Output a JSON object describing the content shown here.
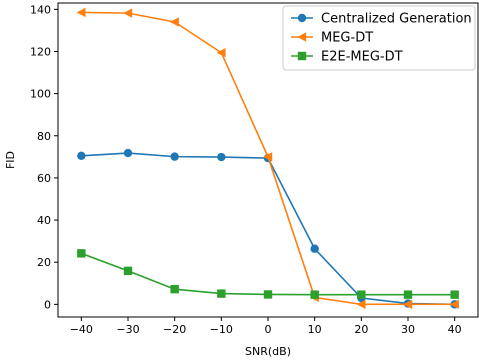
{
  "chart_data": {
    "type": "line",
    "title": "",
    "xlabel": "SNR(dB)",
    "ylabel": "FID",
    "x": [
      -40,
      -30,
      -20,
      -10,
      0,
      10,
      20,
      30,
      40
    ],
    "xticks": [
      "−40",
      "−30",
      "−20",
      "−10",
      "0",
      "10",
      "20",
      "30",
      "40"
    ],
    "yticks": [
      "0",
      "20",
      "40",
      "60",
      "80",
      "100",
      "120",
      "140"
    ],
    "xlim": [
      -45,
      45
    ],
    "ylim": [
      -6,
      143
    ],
    "grid": false,
    "legend_position": "top-right",
    "series": [
      {
        "name": "Centralized Generation",
        "color": "#1f77b4",
        "marker": "circle",
        "values": [
          70.5,
          71.8,
          70.1,
          69.9,
          69.4,
          26.4,
          3.0,
          0.4,
          0.0
        ]
      },
      {
        "name": "MEG-DT",
        "color": "#ff7f0e",
        "marker": "triangle-left",
        "values": [
          138.5,
          138.2,
          134.0,
          119.4,
          70.0,
          3.3,
          0.0,
          0.0,
          0.0
        ]
      },
      {
        "name": "E2E-MEG-DT",
        "color": "#2ca02c",
        "marker": "square",
        "values": [
          24.2,
          15.9,
          7.2,
          5.1,
          4.7,
          4.6,
          4.6,
          4.6,
          4.6
        ]
      }
    ]
  }
}
